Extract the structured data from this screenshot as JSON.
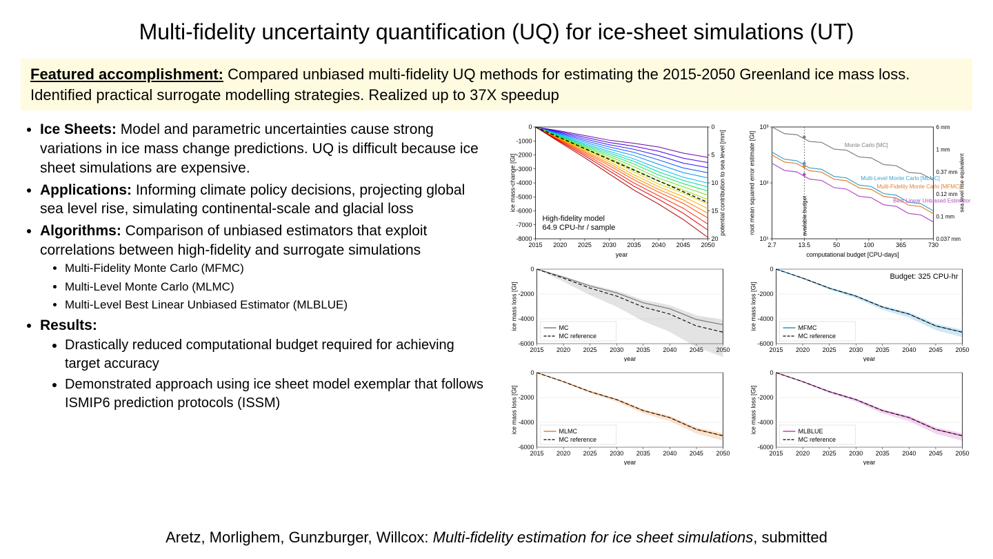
{
  "slide": {
    "title": "Multi-fidelity uncertainty quantification (UQ) for ice-sheet simulations (UT)",
    "featured_lead": "Featured accomplishment:",
    "featured_body": " Compared unbiased multi-fidelity UQ methods for estimating the 2015-2050 Greenland ice mass loss. Identified practical surrogate modelling strategies. Realized up to 37X speedup",
    "bullets": {
      "ice_sheets_head": "Ice Sheets:",
      "ice_sheets_body": " Model and parametric uncertainties cause strong variations in ice mass change predictions. UQ is difficult because ice sheet simulations are expensive.",
      "applications_head": "Applications:",
      "applications_body": " Informing climate policy decisions, projecting global sea level rise, simulating continental-scale and glacial loss",
      "algorithms_head": "Algorithms:",
      "algorithms_body": " Comparison of unbiased estimators that exploit correlations between high-fidelity and surrogate simulations",
      "algo_sub": [
        "Multi-Fidelity Monte Carlo (MFMC)",
        "Multi-Level Monte Carlo (MLMC)",
        "Multi-Level Best Linear Unbiased Estimator (MLBLUE)"
      ],
      "results_head": "Results:",
      "results_sub": [
        "Drastically reduced computational budget required for achieving target accuracy",
        "Demonstrated approach using ice sheet model exemplar that follows ISMIP6 prediction protocols (ISSM)"
      ]
    },
    "citation": {
      "authors": "Aretz, Morlighem, Gunzburger, Willcox: ",
      "title_italic": "Multi-fidelity estimation for ice sheet simulations",
      "suffix": ", submitted"
    }
  },
  "top_left_chart": {
    "type": "line",
    "xlabel": "year",
    "ylabel_left": "ice mass-change [Gt]",
    "ylabel_right": "potential contribution to sea level [mm]",
    "x_years": [
      2015,
      2020,
      2025,
      2030,
      2035,
      2040,
      2045,
      2050
    ],
    "y_ticks": [
      0,
      -1000,
      -2000,
      -3000,
      -4000,
      -5000,
      -6000,
      -7000,
      -8000
    ],
    "y2_ticks": [
      0,
      5,
      10,
      15,
      20
    ],
    "annotation": "High-fidelity model\n64.9 CPU-hr / sample",
    "line_colors": [
      "#6a00b0",
      "#4a00d8",
      "#2a10ff",
      "#0050ff",
      "#0090ff",
      "#00c0e0",
      "#00d8a0",
      "#10e060",
      "#60e020",
      "#a0e000",
      "#d8d000",
      "#f0b000",
      "#ff8000",
      "#ff5000",
      "#ff2000",
      "#e00000",
      "#b00000"
    ],
    "line_end_y": [
      -2100,
      -2500,
      -2900,
      -3300,
      -3700,
      -4100,
      -4400,
      -4700,
      -5000,
      -5300,
      -5600,
      -5900,
      -6200,
      -6500,
      -6900,
      -7300,
      -7800
    ],
    "ref_dash_y": -5400,
    "background": "#ffffff",
    "axis_color": "#000000",
    "tick_fontsize": 9
  },
  "top_right_chart": {
    "type": "line",
    "xlabel": "computational budget [CPU-days]",
    "ylabel_left": "root mean squared error estimate [Gt]",
    "ylabel_right": "sea level rise equivalent",
    "x_ticks": [
      "2.7",
      "13.5",
      "50",
      "100",
      "365",
      "730"
    ],
    "y_ticks_exp": [
      "10³",
      "10²",
      "10¹"
    ],
    "y2_labels": [
      "6 mm",
      "1 mm",
      "0.37 mm",
      "0.12 mm",
      "0.1 mm",
      "0.037 mm"
    ],
    "lines": [
      {
        "label": "Monte Carlo [MC]",
        "color": "#808080",
        "y0": 3.0,
        "y1": 2.1
      },
      {
        "label": "Multi-Level Monte Carlo [MLMC]",
        "color": "#3fa0d0",
        "y0": 2.55,
        "y1": 1.55
      },
      {
        "label": "Multi-Fidelity Monte Carlo [MFMC]",
        "color": "#e08030",
        "y0": 2.5,
        "y1": 1.5
      },
      {
        "label": "Best Linear Unbiased Estimator [MLBLUE]",
        "color": "#b050c0",
        "y0": 2.35,
        "y1": 1.35
      }
    ],
    "budget_line_x": "13.5",
    "budget_label": "available budget",
    "background": "#ffffff",
    "axis_color": "#000000",
    "tick_fontsize": 9
  },
  "small_charts": {
    "xlabel": "year",
    "ylabel": "ice mass loss [Gt]",
    "x_years": [
      2015,
      2020,
      2025,
      2030,
      2035,
      2040,
      2045,
      2050
    ],
    "y_ticks": [
      0,
      -2000,
      -4000,
      -6000
    ],
    "ref_label": "MC reference",
    "ref_color": "#000000",
    "budget_note": "Budget: 325 CPU-hr",
    "cells": [
      {
        "name": "MC",
        "color": "#808080",
        "band_wide": true
      },
      {
        "name": "MFMC",
        "color": "#3090c8",
        "band_wide": false
      },
      {
        "name": "MLMC",
        "color": "#e08030",
        "band_wide": false
      },
      {
        "name": "MLBLUE",
        "color": "#c040b0",
        "band_wide": false
      }
    ],
    "background": "#ffffff",
    "axis_color": "#000000",
    "grid_color": "#e0e0e0",
    "tick_fontsize": 9
  }
}
